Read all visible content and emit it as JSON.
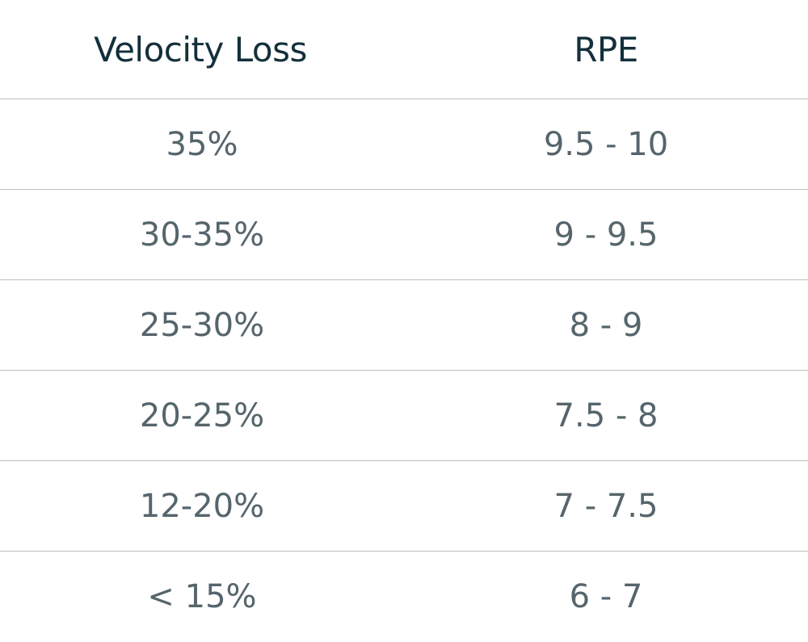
{
  "headers": [
    "Velocity Loss",
    "RPE"
  ],
  "rows": [
    [
      "35%",
      "9.5 - 10"
    ],
    [
      "30-35%",
      "9 - 9.5"
    ],
    [
      "25-30%",
      "8 - 9"
    ],
    [
      "20-25%",
      "7.5 - 8"
    ],
    [
      "12-20%",
      "7 - 7.5"
    ],
    [
      "< 15%",
      "6 - 7"
    ]
  ],
  "colors": {
    "header_text": "#13303b",
    "body_text": "#56656c",
    "divider": "#b8bfc3"
  }
}
